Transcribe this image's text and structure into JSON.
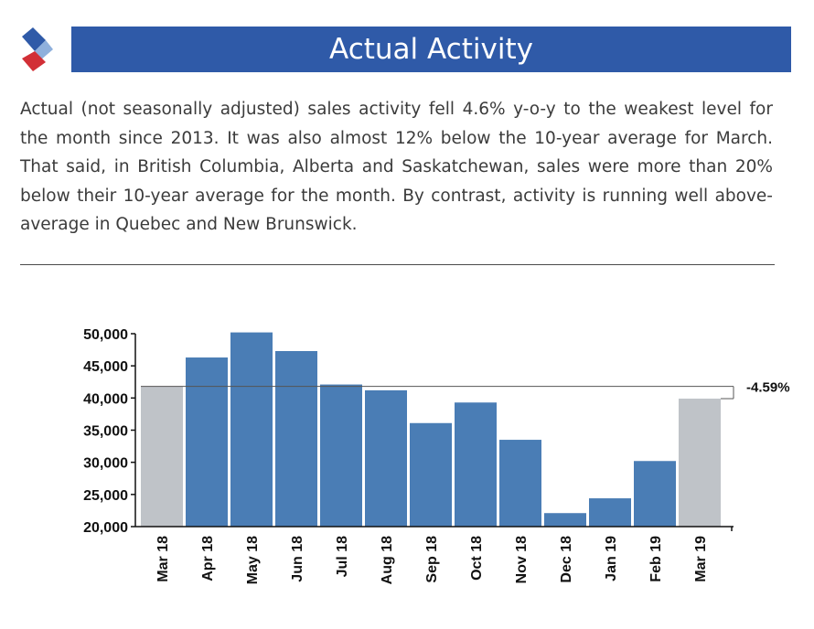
{
  "header": {
    "title": "Actual Activity"
  },
  "body": {
    "paragraph": "Actual (not seasonally adjusted) sales activity fell 4.6% y-o-y to the weakest level for the month since 2013. It was also almost 12% below the 10-year average for March. That said, in British Columbia, Alberta and Saskatchewan, sales were more than 20% below their 10-year average for the month. By contrast, activity is running well above-average in Quebec and New Brunswick."
  },
  "colors": {
    "header_bar": "#2f5aa8",
    "bar_highlight": "#bfc3c8",
    "bar_normal": "#4a7db5",
    "logo_top": "#2f5aa8",
    "logo_bottom": "#d22f36"
  },
  "logo": {
    "icon": "diamond-logo-icon"
  },
  "chart_data": {
    "type": "bar",
    "categories": [
      "Mar 18",
      "Apr 18",
      "May 18",
      "Jun 18",
      "Jul 18",
      "Aug 18",
      "Sep 18",
      "Oct 18",
      "Nov 18",
      "Dec 18",
      "Jan 19",
      "Feb 19",
      "Mar 19"
    ],
    "values": [
      41800,
      46300,
      50200,
      47300,
      42100,
      41200,
      36100,
      39300,
      33500,
      22100,
      24400,
      30200,
      39900
    ],
    "highlight": [
      "Mar 18",
      "Mar 19"
    ],
    "yticks": [
      "50,000",
      "45,000",
      "40,000",
      "35,000",
      "30,000",
      "25,000",
      "20,000"
    ],
    "ytick_values": [
      50000,
      45000,
      40000,
      35000,
      30000,
      25000,
      20000
    ],
    "ylim": [
      20000,
      50000
    ],
    "annotation": "-4.59%",
    "title": "",
    "xlabel": "",
    "ylabel": "",
    "grid": false
  }
}
